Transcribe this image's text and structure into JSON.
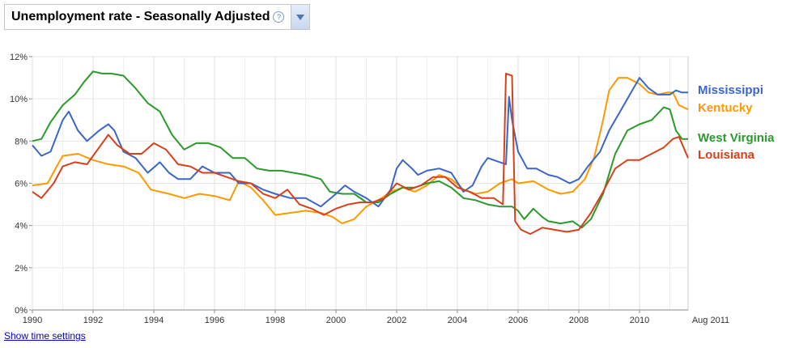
{
  "header": {
    "metric_label": "Unemployment rate - Seasonally Adjusted",
    "help_glyph": "?"
  },
  "footer": {
    "time_settings_link": "Show time settings",
    "end_label": "Aug 2011"
  },
  "colors": {
    "Mississippi": "#3a66c8",
    "Kentucky": "#ff9900",
    "West Virginia": "#2a9a2a",
    "Louisiana": "#d8401a"
  },
  "chart_data": {
    "type": "line",
    "title": "Unemployment rate - Seasonally Adjusted",
    "xlabel": "",
    "ylabel": "",
    "xlim": [
      1990,
      2011.6
    ],
    "ylim": [
      0,
      12
    ],
    "x_ticks": [
      "1990",
      "1992",
      "1994",
      "1996",
      "1998",
      "2000",
      "2002",
      "2004",
      "2006",
      "2008",
      "2010"
    ],
    "x_tick_values": [
      1990,
      1992,
      1994,
      1996,
      1998,
      2000,
      2002,
      2004,
      2006,
      2008,
      2010
    ],
    "y_ticks": [
      "0%",
      "2%",
      "4%",
      "6%",
      "8%",
      "10%",
      "12%"
    ],
    "y_tick_values": [
      0,
      2,
      4,
      6,
      8,
      10,
      12
    ],
    "grid": true,
    "legend_placement": "right",
    "series": [
      {
        "name": "Mississippi",
        "points": [
          [
            1990,
            7.8
          ],
          [
            1990.3,
            7.3
          ],
          [
            1990.6,
            7.5
          ],
          [
            1991.0,
            9.0
          ],
          [
            1991.2,
            9.4
          ],
          [
            1991.5,
            8.5
          ],
          [
            1991.8,
            8.0
          ],
          [
            1992.2,
            8.5
          ],
          [
            1992.5,
            8.8
          ],
          [
            1992.7,
            8.5
          ],
          [
            1993.0,
            7.5
          ],
          [
            1993.4,
            7.2
          ],
          [
            1993.8,
            6.5
          ],
          [
            1994.2,
            7.0
          ],
          [
            1994.5,
            6.5
          ],
          [
            1994.8,
            6.2
          ],
          [
            1995.2,
            6.2
          ],
          [
            1995.6,
            6.8
          ],
          [
            1996.0,
            6.5
          ],
          [
            1996.5,
            6.5
          ],
          [
            1996.8,
            6.0
          ],
          [
            1997.2,
            6.0
          ],
          [
            1997.6,
            5.7
          ],
          [
            1998.0,
            5.5
          ],
          [
            1998.5,
            5.3
          ],
          [
            1999.0,
            5.3
          ],
          [
            1999.5,
            4.9
          ],
          [
            2000.0,
            5.5
          ],
          [
            2000.3,
            5.9
          ],
          [
            2000.6,
            5.6
          ],
          [
            2001.0,
            5.3
          ],
          [
            2001.4,
            4.9
          ],
          [
            2001.8,
            5.7
          ],
          [
            2002.0,
            6.7
          ],
          [
            2002.2,
            7.1
          ],
          [
            2002.5,
            6.7
          ],
          [
            2002.7,
            6.4
          ],
          [
            2003.0,
            6.6
          ],
          [
            2003.4,
            6.7
          ],
          [
            2003.8,
            6.5
          ],
          [
            2004.2,
            5.6
          ],
          [
            2004.5,
            5.9
          ],
          [
            2004.8,
            6.8
          ],
          [
            2005.0,
            7.2
          ],
          [
            2005.4,
            7.0
          ],
          [
            2005.6,
            6.9
          ],
          [
            2005.7,
            10.1
          ],
          [
            2005.8,
            9.0
          ],
          [
            2006.0,
            7.5
          ],
          [
            2006.3,
            6.7
          ],
          [
            2006.6,
            6.7
          ],
          [
            2007.0,
            6.4
          ],
          [
            2007.3,
            6.3
          ],
          [
            2007.7,
            6.0
          ],
          [
            2008.0,
            6.2
          ],
          [
            2008.3,
            6.8
          ],
          [
            2008.7,
            7.5
          ],
          [
            2009.0,
            8.5
          ],
          [
            2009.4,
            9.5
          ],
          [
            2009.8,
            10.5
          ],
          [
            2010.0,
            11.0
          ],
          [
            2010.3,
            10.5
          ],
          [
            2010.6,
            10.2
          ],
          [
            2011.0,
            10.2
          ],
          [
            2011.2,
            10.4
          ],
          [
            2011.4,
            10.3
          ],
          [
            2011.6,
            10.3
          ]
        ]
      },
      {
        "name": "Kentucky",
        "points": [
          [
            1990,
            5.9
          ],
          [
            1990.5,
            6.0
          ],
          [
            1990.8,
            6.8
          ],
          [
            1991.0,
            7.3
          ],
          [
            1991.5,
            7.4
          ],
          [
            1992.0,
            7.1
          ],
          [
            1992.5,
            6.9
          ],
          [
            1993.0,
            6.8
          ],
          [
            1993.5,
            6.5
          ],
          [
            1993.9,
            5.7
          ],
          [
            1994.5,
            5.5
          ],
          [
            1995.0,
            5.3
          ],
          [
            1995.5,
            5.5
          ],
          [
            1996.0,
            5.4
          ],
          [
            1996.5,
            5.2
          ],
          [
            1996.8,
            6.1
          ],
          [
            1997.2,
            5.8
          ],
          [
            1997.6,
            5.2
          ],
          [
            1998.0,
            4.5
          ],
          [
            1998.5,
            4.6
          ],
          [
            1999.0,
            4.7
          ],
          [
            1999.5,
            4.6
          ],
          [
            1999.9,
            4.4
          ],
          [
            2000.2,
            4.1
          ],
          [
            2000.6,
            4.3
          ],
          [
            2001.0,
            4.9
          ],
          [
            2001.5,
            5.3
          ],
          [
            2001.8,
            5.6
          ],
          [
            2002.2,
            5.8
          ],
          [
            2002.6,
            5.6
          ],
          [
            2003.0,
            5.9
          ],
          [
            2003.4,
            6.4
          ],
          [
            2003.8,
            6.2
          ],
          [
            2004.2,
            5.7
          ],
          [
            2004.6,
            5.5
          ],
          [
            2005.0,
            5.6
          ],
          [
            2005.4,
            6.0
          ],
          [
            2005.8,
            6.2
          ],
          [
            2006.0,
            6.0
          ],
          [
            2006.5,
            6.1
          ],
          [
            2007.0,
            5.7
          ],
          [
            2007.4,
            5.5
          ],
          [
            2007.8,
            5.6
          ],
          [
            2008.2,
            6.2
          ],
          [
            2008.5,
            7.2
          ],
          [
            2008.8,
            9.0
          ],
          [
            2009.0,
            10.4
          ],
          [
            2009.3,
            11.0
          ],
          [
            2009.6,
            11.0
          ],
          [
            2010.0,
            10.7
          ],
          [
            2010.3,
            10.3
          ],
          [
            2010.6,
            10.2
          ],
          [
            2010.9,
            10.3
          ],
          [
            2011.1,
            10.3
          ],
          [
            2011.3,
            9.7
          ],
          [
            2011.6,
            9.5
          ]
        ]
      },
      {
        "name": "West Virginia",
        "points": [
          [
            1990,
            8.0
          ],
          [
            1990.3,
            8.1
          ],
          [
            1990.6,
            8.9
          ],
          [
            1991.0,
            9.7
          ],
          [
            1991.4,
            10.2
          ],
          [
            1991.7,
            10.8
          ],
          [
            1992.0,
            11.3
          ],
          [
            1992.3,
            11.2
          ],
          [
            1992.6,
            11.2
          ],
          [
            1993.0,
            11.1
          ],
          [
            1993.4,
            10.5
          ],
          [
            1993.8,
            9.8
          ],
          [
            1994.2,
            9.4
          ],
          [
            1994.6,
            8.3
          ],
          [
            1995.0,
            7.6
          ],
          [
            1995.4,
            7.9
          ],
          [
            1995.8,
            7.9
          ],
          [
            1996.2,
            7.7
          ],
          [
            1996.6,
            7.2
          ],
          [
            1997.0,
            7.2
          ],
          [
            1997.4,
            6.7
          ],
          [
            1997.8,
            6.6
          ],
          [
            1998.2,
            6.6
          ],
          [
            1998.6,
            6.5
          ],
          [
            1999.0,
            6.4
          ],
          [
            1999.5,
            6.2
          ],
          [
            1999.8,
            5.6
          ],
          [
            2000.2,
            5.5
          ],
          [
            2000.6,
            5.5
          ],
          [
            2001.0,
            5.1
          ],
          [
            2001.4,
            5.1
          ],
          [
            2001.8,
            5.5
          ],
          [
            2002.2,
            5.8
          ],
          [
            2002.6,
            5.8
          ],
          [
            2003.0,
            6.0
          ],
          [
            2003.4,
            6.1
          ],
          [
            2003.8,
            5.8
          ],
          [
            2004.2,
            5.3
          ],
          [
            2004.6,
            5.2
          ],
          [
            2005.0,
            5.0
          ],
          [
            2005.4,
            4.9
          ],
          [
            2005.8,
            4.9
          ],
          [
            2006.0,
            4.7
          ],
          [
            2006.2,
            4.3
          ],
          [
            2006.5,
            4.8
          ],
          [
            2006.8,
            4.4
          ],
          [
            2007.0,
            4.2
          ],
          [
            2007.4,
            4.1
          ],
          [
            2007.8,
            4.2
          ],
          [
            2008.1,
            3.9
          ],
          [
            2008.4,
            4.3
          ],
          [
            2008.8,
            5.5
          ],
          [
            2009.2,
            7.4
          ],
          [
            2009.6,
            8.5
          ],
          [
            2010.0,
            8.8
          ],
          [
            2010.4,
            9.0
          ],
          [
            2010.8,
            9.6
          ],
          [
            2011.0,
            9.5
          ],
          [
            2011.2,
            8.5
          ],
          [
            2011.4,
            8.1
          ],
          [
            2011.6,
            8.1
          ]
        ]
      },
      {
        "name": "Louisiana",
        "points": [
          [
            1990,
            5.6
          ],
          [
            1990.3,
            5.3
          ],
          [
            1990.7,
            6.0
          ],
          [
            1991.0,
            6.8
          ],
          [
            1991.4,
            7.0
          ],
          [
            1991.8,
            6.9
          ],
          [
            1992.2,
            7.7
          ],
          [
            1992.5,
            8.3
          ],
          [
            1992.8,
            7.8
          ],
          [
            1993.2,
            7.4
          ],
          [
            1993.6,
            7.4
          ],
          [
            1994.0,
            7.9
          ],
          [
            1994.4,
            7.6
          ],
          [
            1994.8,
            6.9
          ],
          [
            1995.2,
            6.8
          ],
          [
            1995.6,
            6.5
          ],
          [
            1996.0,
            6.5
          ],
          [
            1996.4,
            6.3
          ],
          [
            1996.8,
            6.1
          ],
          [
            1997.2,
            6.0
          ],
          [
            1997.6,
            5.5
          ],
          [
            1998.0,
            5.3
          ],
          [
            1998.4,
            5.7
          ],
          [
            1998.8,
            5.0
          ],
          [
            1999.2,
            4.8
          ],
          [
            1999.6,
            4.5
          ],
          [
            2000.0,
            4.8
          ],
          [
            2000.4,
            5.0
          ],
          [
            2000.8,
            5.1
          ],
          [
            2001.2,
            5.1
          ],
          [
            2001.6,
            5.3
          ],
          [
            2002.0,
            6.0
          ],
          [
            2002.4,
            5.7
          ],
          [
            2002.8,
            5.9
          ],
          [
            2003.2,
            6.3
          ],
          [
            2003.6,
            6.3
          ],
          [
            2004.0,
            5.8
          ],
          [
            2004.4,
            5.6
          ],
          [
            2004.8,
            5.3
          ],
          [
            2005.2,
            5.3
          ],
          [
            2005.5,
            5.0
          ],
          [
            2005.6,
            11.2
          ],
          [
            2005.8,
            11.1
          ],
          [
            2005.9,
            4.2
          ],
          [
            2006.1,
            3.8
          ],
          [
            2006.4,
            3.6
          ],
          [
            2006.8,
            3.9
          ],
          [
            2007.2,
            3.8
          ],
          [
            2007.6,
            3.7
          ],
          [
            2008.0,
            3.8
          ],
          [
            2008.4,
            4.6
          ],
          [
            2008.8,
            5.6
          ],
          [
            2009.2,
            6.7
          ],
          [
            2009.6,
            7.1
          ],
          [
            2010.0,
            7.1
          ],
          [
            2010.4,
            7.4
          ],
          [
            2010.8,
            7.7
          ],
          [
            2011.1,
            8.1
          ],
          [
            2011.3,
            8.2
          ],
          [
            2011.6,
            7.2
          ]
        ]
      }
    ]
  }
}
